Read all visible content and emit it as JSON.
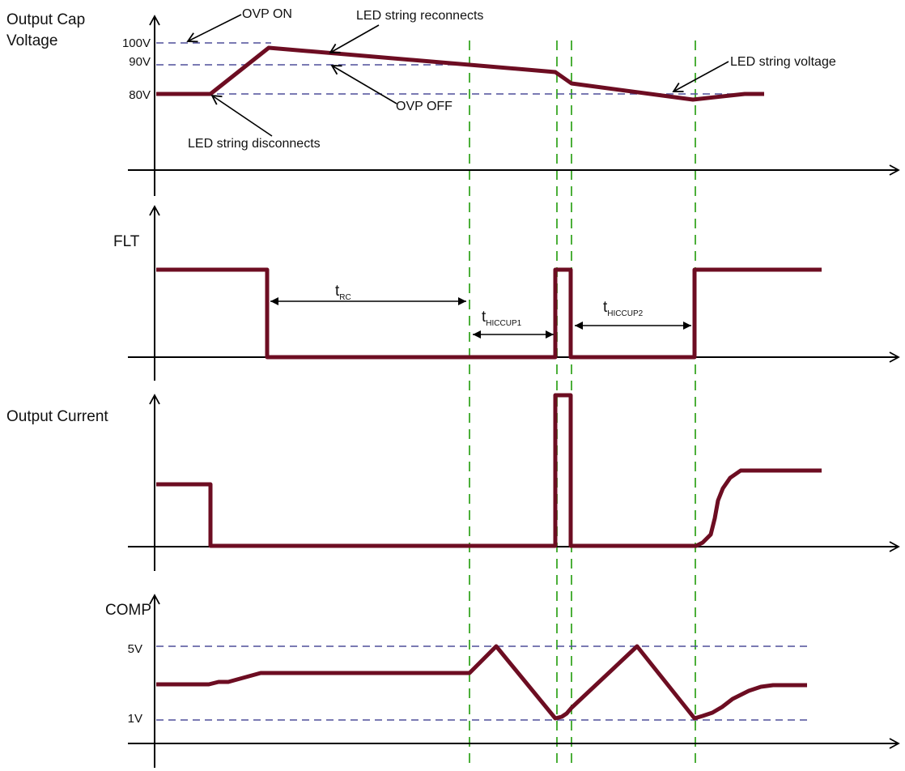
{
  "panels": {
    "cap": {
      "title_line1": "Output Cap",
      "title_line2": "Voltage",
      "levels": {
        "v100": "100V",
        "v90": "90V",
        "v80": "80V"
      },
      "annotations": {
        "ovp_on": "OVP ON",
        "led_reconnects": "LED string reconnects",
        "led_voltage": "LED string voltage",
        "ovp_off": "OVP OFF",
        "led_disconnects": "LED string disconnects"
      }
    },
    "flt": {
      "title": "FLT",
      "t_rc": {
        "t": "t",
        "sub": "RC"
      },
      "t_hiccup1": {
        "t": "t",
        "sub": "HICCUP1"
      },
      "t_hiccup2": {
        "t": "t",
        "sub": "HICCUP2"
      }
    },
    "current": {
      "title": "Output Current"
    },
    "comp": {
      "title": "COMP",
      "levels": {
        "v5": "5V",
        "v1": "1V"
      }
    }
  },
  "colors": {
    "signal": "#6d0d22",
    "reference_line": "#4f4f9a",
    "event_marker": "#4caf3a",
    "axis": "#000000"
  }
}
